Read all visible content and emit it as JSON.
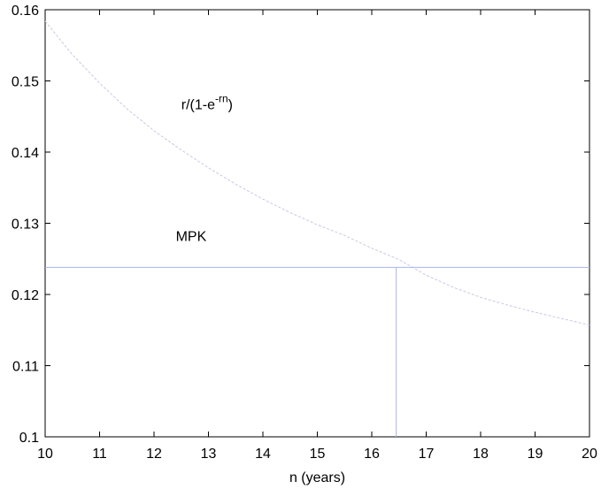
{
  "chart_data": {
    "type": "line",
    "title": "",
    "xlabel": "n (years)",
    "ylabel": "",
    "xlim": [
      10,
      20
    ],
    "ylim": [
      0.1,
      0.16
    ],
    "x_ticks": [
      10,
      11,
      12,
      13,
      14,
      15,
      16,
      17,
      18,
      19,
      20
    ],
    "x_tick_labels": [
      "10",
      "11",
      "12",
      "13",
      "14",
      "15",
      "16",
      "17",
      "18",
      "19",
      "20"
    ],
    "y_ticks": [
      0.1,
      0.11,
      0.12,
      0.13,
      0.14,
      0.15,
      0.16
    ],
    "y_tick_labels": [
      "0.1",
      "0.11",
      "0.12",
      "0.13",
      "0.14",
      "0.15",
      "0.16"
    ],
    "grid": false,
    "series": [
      {
        "x": [
          10,
          10.5,
          11,
          11.5,
          12,
          12.5,
          13,
          13.5,
          14,
          14.5,
          15,
          15.5,
          16,
          16.5,
          17,
          17.5,
          18,
          18.5,
          19,
          19.5,
          20
        ],
        "y": [
          0.1584,
          0.1537,
          0.1497,
          0.1461,
          0.143,
          0.1403,
          0.1378,
          0.1355,
          0.1334,
          0.1315,
          0.1298,
          0.1283,
          0.1265,
          0.1249,
          0.1227,
          0.121,
          0.1196,
          0.1185,
          0.1175,
          0.1166,
          0.1157
        ],
        "color": "#c8c8e6",
        "style": "dashed"
      },
      {
        "x": [
          10,
          20
        ],
        "y": [
          0.1238,
          0.1238
        ],
        "color": "#aab4ee",
        "style": "solid"
      },
      {
        "x": [
          16.45,
          16.45
        ],
        "y": [
          0.1,
          0.1238
        ],
        "color": "#aab4ee",
        "style": "solid"
      }
    ],
    "annotations": [
      {
        "base": "r/(1-e",
        "sup": "-rn",
        "tail": ")",
        "x": 12.5,
        "y": 0.146
      },
      {
        "text": "MPK",
        "x": 12.4,
        "y": 0.1275
      }
    ]
  }
}
